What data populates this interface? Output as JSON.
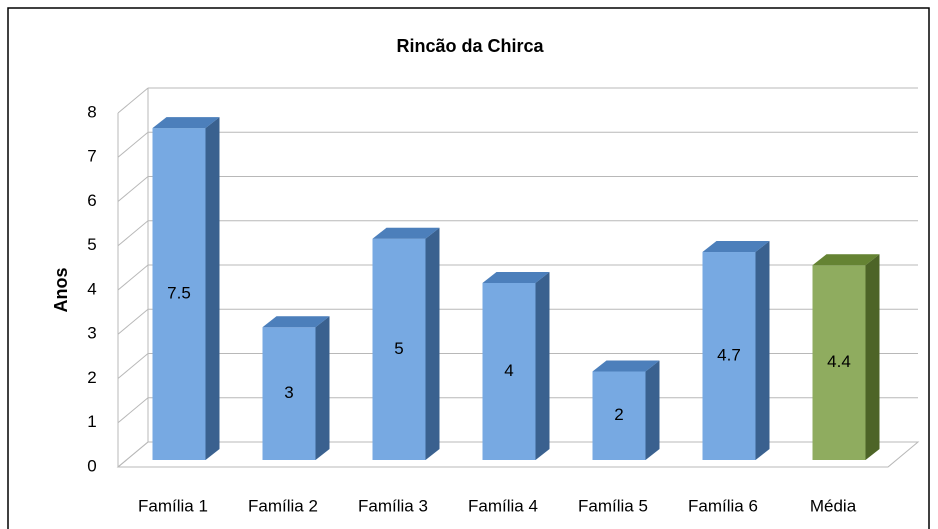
{
  "chart_data": {
    "type": "bar3d",
    "title": "Rincão da Chirca",
    "y_label": "Anos",
    "categories": [
      "Família 1",
      "Família 2",
      "Família 3",
      "Família 4",
      "Família 5",
      "Família 6",
      "Média"
    ],
    "values": [
      7.5,
      3,
      5,
      4,
      2,
      4.7,
      4.4
    ],
    "colors": [
      "#5a96dc",
      "#5a96dc",
      "#5a96dc",
      "#5a96dc",
      "#5a96dc",
      "#5a96dc",
      "#779a3c"
    ],
    "ylim": [
      0,
      8
    ],
    "yticks": [
      0,
      1,
      2,
      3,
      4,
      5,
      6,
      7,
      8
    ],
    "grid": true
  }
}
